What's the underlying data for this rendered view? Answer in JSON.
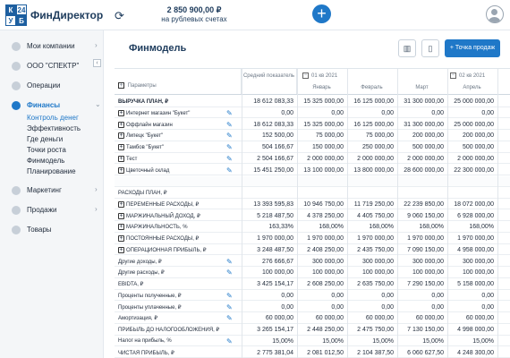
{
  "topbar": {
    "logo_letters": [
      "К",
      "24",
      "У",
      "Б"
    ],
    "brand": "ФинДиректор",
    "balance_amount": "2 850 900,00 ₽",
    "balance_label": "на рублевых счетах",
    "add_label": "+"
  },
  "sidebar": {
    "items": [
      {
        "label": "Мои компании"
      },
      {
        "label": "ООО \"СПЕКТР\""
      },
      {
        "label": "Операции"
      },
      {
        "label": "Финансы"
      },
      {
        "label": "Маркетинг"
      },
      {
        "label": "Продажи"
      },
      {
        "label": "Товары"
      }
    ],
    "finance_sub": [
      "Контроль денег",
      "Эффективность",
      "Где деньги",
      "Точки роста",
      "Финмодель",
      "Планирование"
    ]
  },
  "main": {
    "title": "Финмодель",
    "sales_button": "Точка продаж",
    "sales_button_icon": "+"
  },
  "table": {
    "params_label": "Параметры",
    "avg_label": "Средний показатель",
    "q1_label": "01 кв 2021",
    "q2_label": "02 кв 2021",
    "months": [
      "Январь",
      "Февраль",
      "Март",
      "Апрель"
    ],
    "rows": [
      {
        "label": "ВЫРУЧКА ПЛАН, ₽",
        "bold": true,
        "plus": false,
        "pen": false,
        "avg": "18 612 083,33",
        "vals": [
          "15 325 000,00",
          "16 125 000,00",
          "31 300 000,00",
          "25 000 000,00"
        ]
      },
      {
        "label": "Интернет магазин \"Букет\"",
        "bold": false,
        "plus": true,
        "pen": true,
        "avg": "0,00",
        "vals": [
          "0,00",
          "0,00",
          "0,00",
          "0,00"
        ]
      },
      {
        "label": "Оффлайн магазин",
        "bold": false,
        "plus": true,
        "pen": true,
        "avg": "18 612 083,33",
        "vals": [
          "15 325 000,00",
          "16 125 000,00",
          "31 300 000,00",
          "25 000 000,00"
        ]
      },
      {
        "label": "Липецк \"Букет\"",
        "bold": false,
        "plus": true,
        "pen": true,
        "avg": "152 500,00",
        "vals": [
          "75 000,00",
          "75 000,00",
          "200 000,00",
          "200 000,00"
        ]
      },
      {
        "label": "Тамбов \"Букет\"",
        "bold": false,
        "plus": true,
        "pen": true,
        "avg": "504 166,67",
        "vals": [
          "150 000,00",
          "250 000,00",
          "500 000,00",
          "500 000,00"
        ]
      },
      {
        "label": "Тест",
        "bold": false,
        "plus": true,
        "pen": true,
        "avg": "2 504 166,67",
        "vals": [
          "2 000 000,00",
          "2 000 000,00",
          "2 000 000,00",
          "2 000 000,00"
        ]
      },
      {
        "label": "Цветочный склад",
        "bold": false,
        "plus": true,
        "pen": true,
        "avg": "15 451 250,00",
        "vals": [
          "13 100 000,00",
          "13 800 000,00",
          "28 600 000,00",
          "22 300 000,00"
        ]
      },
      {
        "label": "",
        "bold": false,
        "plus": false,
        "pen": false,
        "avg": "",
        "vals": [
          "",
          "",
          "",
          ""
        ]
      },
      {
        "label": "РАСХОДЫ ПЛАН, ₽",
        "bold": false,
        "plus": false,
        "pen": false,
        "avg": "",
        "vals": [
          "",
          "",
          "",
          ""
        ]
      },
      {
        "label": "ПЕРЕМЕННЫЕ РАСХОДЫ, ₽",
        "bold": false,
        "plus": true,
        "pen": false,
        "avg": "13 393 595,83",
        "vals": [
          "10 946 750,00",
          "11 719 250,00",
          "22 239 850,00",
          "18 072 000,00"
        ]
      },
      {
        "label": "МАРЖИНАЛЬНЫЙ ДОХОД, ₽",
        "bold": false,
        "plus": true,
        "pen": false,
        "avg": "5 218 487,50",
        "vals": [
          "4 378 250,00",
          "4 405 750,00",
          "9 060 150,00",
          "6 928 000,00"
        ]
      },
      {
        "label": "МАРЖИНАЛЬНОСТЬ, %",
        "bold": false,
        "plus": true,
        "pen": false,
        "avg": "163,33%",
        "vals": [
          "168,00%",
          "168,00%",
          "168,00%",
          "168,00%"
        ]
      },
      {
        "label": "ПОСТОЯННЫЕ РАСХОДЫ, ₽",
        "bold": false,
        "plus": true,
        "pen": false,
        "avg": "1 970 000,00",
        "vals": [
          "1 970 000,00",
          "1 970 000,00",
          "1 970 000,00",
          "1 970 000,00"
        ]
      },
      {
        "label": "ОПЕРАЦИОННАЯ ПРИБЫЛЬ, ₽",
        "bold": false,
        "plus": true,
        "pen": false,
        "avg": "3 248 487,50",
        "vals": [
          "2 408 250,00",
          "2 435 750,00",
          "7 090 150,00",
          "4 958 000,00"
        ]
      },
      {
        "label": "Другие доходы, ₽",
        "bold": false,
        "plus": false,
        "pen": true,
        "avg": "276 666,67",
        "vals": [
          "300 000,00",
          "300 000,00",
          "300 000,00",
          "300 000,00"
        ]
      },
      {
        "label": "Другие расходы, ₽",
        "bold": false,
        "plus": false,
        "pen": true,
        "avg": "100 000,00",
        "vals": [
          "100 000,00",
          "100 000,00",
          "100 000,00",
          "100 000,00"
        ]
      },
      {
        "label": "EBIDTA, ₽",
        "bold": false,
        "plus": false,
        "pen": false,
        "avg": "3 425 154,17",
        "vals": [
          "2 608 250,00",
          "2 635 750,00",
          "7 290 150,00",
          "5 158 000,00"
        ]
      },
      {
        "label": "Проценты полученные, ₽",
        "bold": false,
        "plus": false,
        "pen": true,
        "avg": "0,00",
        "vals": [
          "0,00",
          "0,00",
          "0,00",
          "0,00"
        ]
      },
      {
        "label": "Проценты уплаченные, ₽",
        "bold": false,
        "plus": false,
        "pen": true,
        "avg": "0,00",
        "vals": [
          "0,00",
          "0,00",
          "0,00",
          "0,00"
        ]
      },
      {
        "label": "Амортизация, ₽",
        "bold": false,
        "plus": false,
        "pen": true,
        "avg": "60 000,00",
        "vals": [
          "60 000,00",
          "60 000,00",
          "60 000,00",
          "60 000,00"
        ]
      },
      {
        "label": "ПРИБЫЛЬ ДО НАЛОГООБЛОЖЕНИЯ, ₽",
        "bold": false,
        "plus": false,
        "pen": false,
        "avg": "3 265 154,17",
        "vals": [
          "2 448 250,00",
          "2 475 750,00",
          "7 130 150,00",
          "4 998 000,00"
        ]
      },
      {
        "label": "Налог на прибыль, %",
        "bold": false,
        "plus": false,
        "pen": true,
        "avg": "15,00%",
        "vals": [
          "15,00%",
          "15,00%",
          "15,00%",
          "15,00%"
        ]
      },
      {
        "label": "ЧИСТАЯ ПРИБЫЛЬ, ₽",
        "bold": false,
        "plus": false,
        "pen": false,
        "avg": "2 775 381,04",
        "vals": [
          "2 081 012,50",
          "2 104 387,50",
          "6 060 627,50",
          "4 248 300,00"
        ]
      }
    ]
  }
}
